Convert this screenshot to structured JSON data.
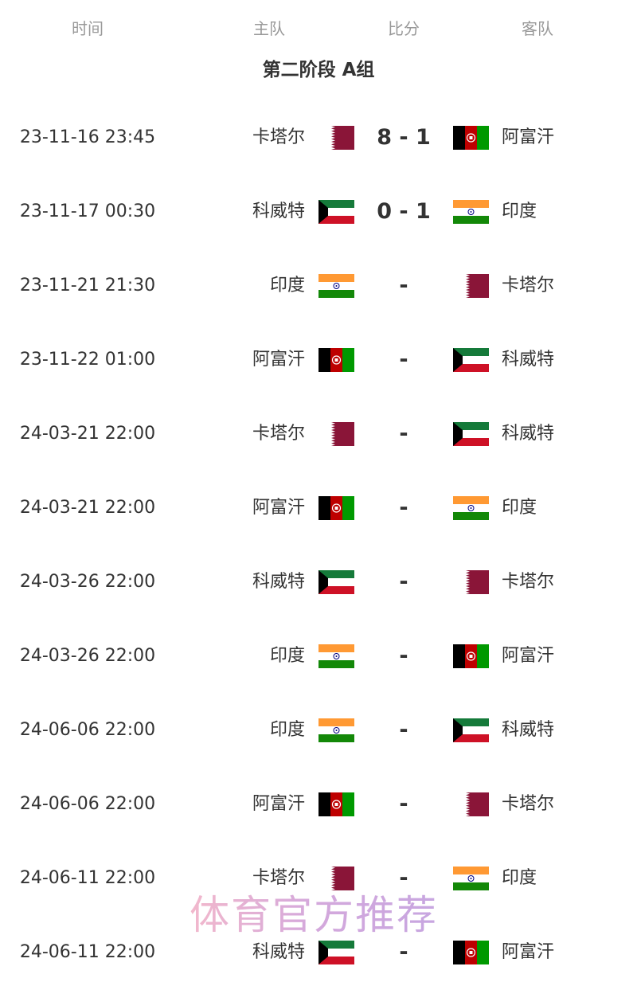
{
  "header": {
    "time": "时间",
    "home": "主队",
    "score": "比分",
    "away": "客队"
  },
  "group_title": "第二阶段 A组",
  "flag_colors": {
    "qatar": "#8a1538",
    "kuwait_green": "#157a3a",
    "kuwait_red": "#ce1126",
    "india_saffron": "#ff9933",
    "india_green": "#138808",
    "afghanistan_red": "#be0000",
    "afghanistan_green": "#009900"
  },
  "matches": [
    {
      "time": "23-11-16 23:45",
      "home": "卡塔尔",
      "home_flag": "qatar",
      "score": "8 - 1",
      "away": "阿富汗",
      "away_flag": "afghanistan"
    },
    {
      "time": "23-11-17 00:30",
      "home": "科威特",
      "home_flag": "kuwait",
      "score": "0 - 1",
      "away": "印度",
      "away_flag": "india"
    },
    {
      "time": "23-11-21 21:30",
      "home": "印度",
      "home_flag": "india",
      "score": "-",
      "away": "卡塔尔",
      "away_flag": "qatar"
    },
    {
      "time": "23-11-22 01:00",
      "home": "阿富汗",
      "home_flag": "afghanistan",
      "score": "-",
      "away": "科威特",
      "away_flag": "kuwait"
    },
    {
      "time": "24-03-21 22:00",
      "home": "卡塔尔",
      "home_flag": "qatar",
      "score": "-",
      "away": "科威特",
      "away_flag": "kuwait"
    },
    {
      "time": "24-03-21 22:00",
      "home": "阿富汗",
      "home_flag": "afghanistan",
      "score": "-",
      "away": "印度",
      "away_flag": "india"
    },
    {
      "time": "24-03-26 22:00",
      "home": "科威特",
      "home_flag": "kuwait",
      "score": "-",
      "away": "卡塔尔",
      "away_flag": "qatar"
    },
    {
      "time": "24-03-26 22:00",
      "home": "印度",
      "home_flag": "india",
      "score": "-",
      "away": "阿富汗",
      "away_flag": "afghanistan"
    },
    {
      "time": "24-06-06 22:00",
      "home": "印度",
      "home_flag": "india",
      "score": "-",
      "away": "科威特",
      "away_flag": "kuwait"
    },
    {
      "time": "24-06-06 22:00",
      "home": "阿富汗",
      "home_flag": "afghanistan",
      "score": "-",
      "away": "卡塔尔",
      "away_flag": "qatar"
    },
    {
      "time": "24-06-11 22:00",
      "home": "卡塔尔",
      "home_flag": "qatar",
      "score": "-",
      "away": "印度",
      "away_flag": "india"
    },
    {
      "time": "24-06-11 22:00",
      "home": "科威特",
      "home_flag": "kuwait",
      "score": "-",
      "away": "阿富汗",
      "away_flag": "afghanistan"
    }
  ],
  "watermark": "体育官方推荐"
}
